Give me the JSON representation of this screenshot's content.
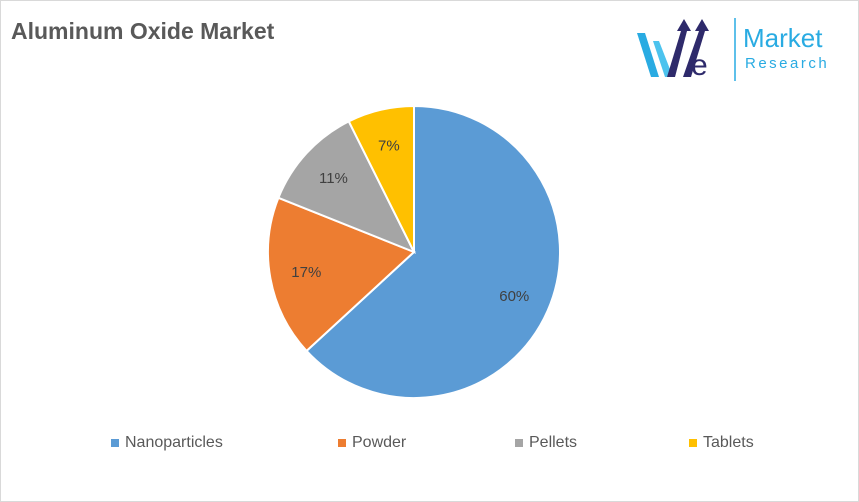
{
  "chart_data": {
    "type": "pie",
    "title": "Aluminum Oxide Market",
    "categories": [
      "Nanoparticles",
      "Powder",
      "Pellets",
      "Tablets"
    ],
    "values": [
      60,
      17,
      11,
      7
    ],
    "labels": [
      "60%",
      "17%",
      "11%",
      "7%"
    ],
    "colors": [
      "#5b9bd5",
      "#ed7d31",
      "#a5a5a5",
      "#ffc000"
    ],
    "start_angle": "top, clockwise",
    "legend_position": "bottom"
  },
  "logo": {
    "brand": "We",
    "line1": "Market",
    "line2": "Research",
    "colors": [
      "#29abe2",
      "#2e2a6b"
    ]
  }
}
